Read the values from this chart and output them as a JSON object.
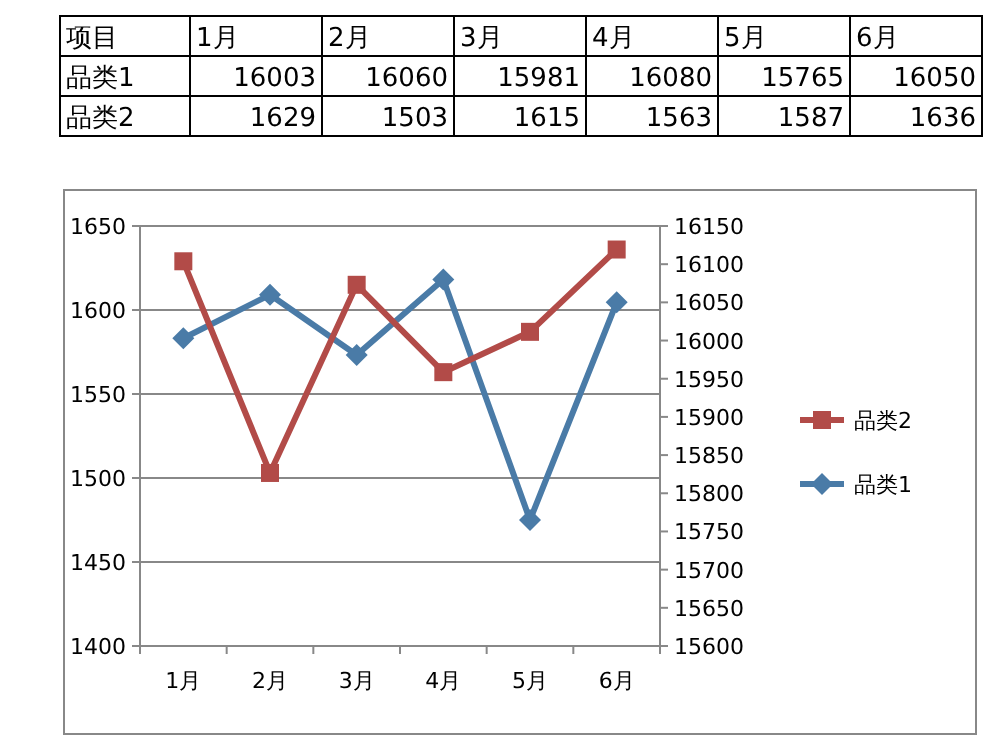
{
  "chart_data": {
    "type": "line",
    "categories": [
      "1月",
      "2月",
      "3月",
      "4月",
      "5月",
      "6月"
    ],
    "series": [
      {
        "name": "品类1",
        "color": "#4a7ba7",
        "values": [
          16003,
          16060,
          15981,
          16080,
          15765,
          16050
        ],
        "axis": "y2",
        "marker": "diamond"
      },
      {
        "name": "品类2",
        "color": "#b24b48",
        "values": [
          1629,
          1503,
          1615,
          1563,
          1587,
          1636
        ],
        "marker": "square"
      }
    ],
    "ylim": [
      1400,
      1650
    ],
    "yticks": [
      1400,
      1450,
      1500,
      1550,
      1600,
      1650
    ],
    "y2lim": [
      15600,
      16150
    ],
    "y2ticks": [
      15600,
      15650,
      15700,
      15750,
      15800,
      15850,
      15900,
      15950,
      16000,
      16050,
      16100,
      16150
    ],
    "grid": "y",
    "legend": "right",
    "annotations": [
      "项目",
      "16003",
      "16060",
      "15981",
      "16080",
      "15765",
      "16050",
      "1629",
      "1503",
      "1615",
      "1563",
      "1587",
      "1636"
    ]
  }
}
